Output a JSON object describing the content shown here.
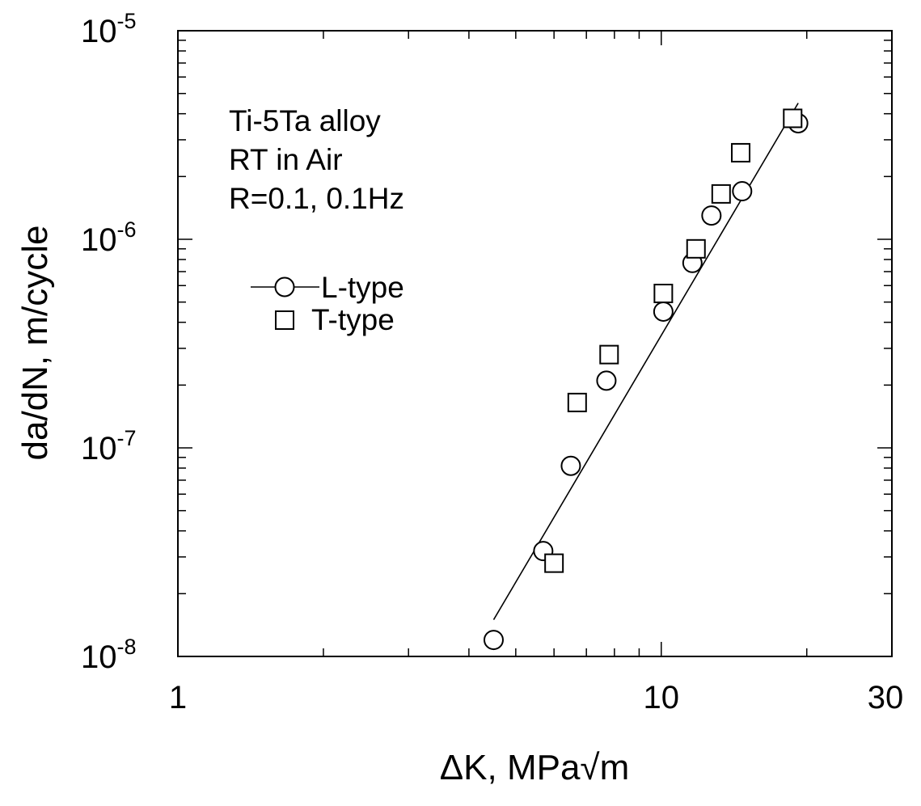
{
  "chart_data": {
    "type": "scatter",
    "xscale": "log",
    "yscale": "log",
    "xlim": [
      1,
      30
    ],
    "ylim": [
      1e-08,
      1e-05
    ],
    "xlabel": "ΔK, MPa√m",
    "ylabel": "da/dN, m/cycle",
    "x_ticks": [
      {
        "value": 1,
        "label": "1"
      },
      {
        "value": 10,
        "label": "10"
      },
      {
        "value": 30,
        "label": "30"
      }
    ],
    "y_ticks": [
      {
        "value": 1e-08,
        "base": "10",
        "exp": "-8"
      },
      {
        "value": 1e-07,
        "base": "10",
        "exp": "-7"
      },
      {
        "value": 1e-06,
        "base": "10",
        "exp": "-6"
      },
      {
        "value": 1e-05,
        "base": "10",
        "exp": "-5"
      }
    ],
    "annotation": [
      "Ti-5Ta alloy",
      "RT in Air",
      "R=0.1, 0.1Hz"
    ],
    "legend_position": "upper-left",
    "series": [
      {
        "name": "L-type",
        "marker": "circle",
        "points": [
          [
            4.5,
            1.2e-08
          ],
          [
            5.7,
            3.2e-08
          ],
          [
            6.5,
            8.2e-08
          ],
          [
            7.7,
            2.1e-07
          ],
          [
            10.1,
            4.5e-07
          ],
          [
            11.6,
            7.7e-07
          ],
          [
            12.7,
            1.3e-06
          ],
          [
            14.7,
            1.7e-06
          ],
          [
            19.2,
            3.6e-06
          ]
        ]
      },
      {
        "name": "T-type",
        "marker": "square",
        "points": [
          [
            6.0,
            2.8e-08
          ],
          [
            6.7,
            1.65e-07
          ],
          [
            7.8,
            2.8e-07
          ],
          [
            10.1,
            5.5e-07
          ],
          [
            11.8,
            9e-07
          ],
          [
            13.3,
            1.65e-06
          ],
          [
            14.6,
            2.6e-06
          ],
          [
            18.7,
            3.8e-06
          ]
        ]
      }
    ],
    "fit_line": {
      "series": "L-type",
      "points": [
        [
          4.5,
          1.5e-08
        ],
        [
          19.2,
          4.5e-06
        ]
      ]
    }
  }
}
